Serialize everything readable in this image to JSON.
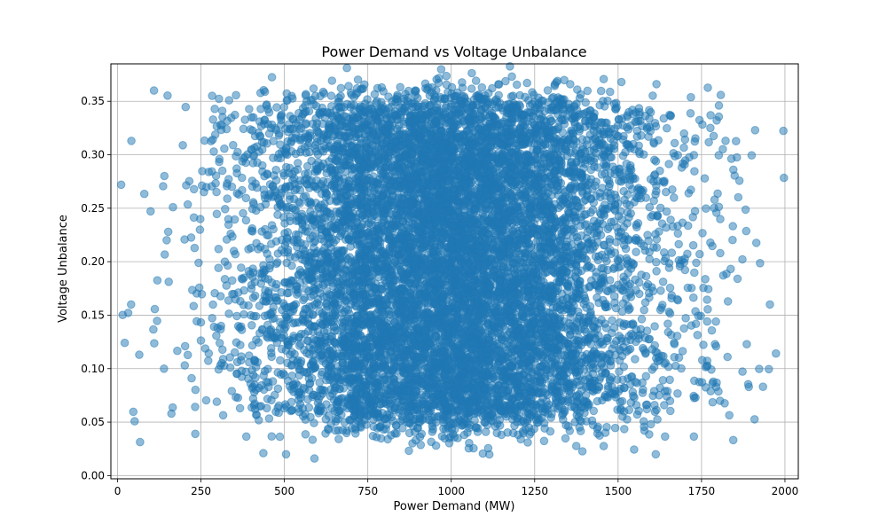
{
  "chart_data": {
    "type": "scatter",
    "title": "Power Demand vs Voltage Unbalance",
    "xlabel": "Power Demand (MW)",
    "ylabel": "Voltage Unbalance",
    "xlim": [
      -20,
      2040
    ],
    "ylim": [
      -0.003,
      0.385
    ],
    "xticks": [
      0,
      250,
      500,
      750,
      1000,
      1250,
      1500,
      1750,
      2000
    ],
    "xtick_labels": [
      "0",
      "250",
      "500",
      "750",
      "1000",
      "1250",
      "1500",
      "1750",
      "2000"
    ],
    "yticks": [
      0.0,
      0.05,
      0.1,
      0.15,
      0.2,
      0.25,
      0.3,
      0.35
    ],
    "ytick_labels": [
      "0.00",
      "0.05",
      "0.10",
      "0.15",
      "0.20",
      "0.25",
      "0.30",
      "0.35"
    ],
    "grid": true,
    "color": "#1f77b4",
    "marker_alpha": 0.5,
    "x_distribution": {
      "mean": 1000,
      "std": 300
    },
    "y_distribution": {
      "min": 0.05,
      "max": 0.35
    },
    "n_points": 10000,
    "outliers": [
      {
        "x": 65,
        "y": 0.113
      },
      {
        "x": 152,
        "y": 0.228
      },
      {
        "x": 222,
        "y": 0.091
      },
      {
        "x": 233,
        "y": 0.039
      },
      {
        "x": 243,
        "y": 0.199
      },
      {
        "x": 1955,
        "y": 0.16
      },
      {
        "x": 1858,
        "y": 0.184
      },
      {
        "x": 1828,
        "y": 0.111
      },
      {
        "x": 1822,
        "y": 0.313
      },
      {
        "x": 1777,
        "y": 0.337
      },
      {
        "x": 1793,
        "y": 0.144
      },
      {
        "x": 1806,
        "y": 0.208
      },
      {
        "x": 1615,
        "y": 0.366
      },
      {
        "x": 1510,
        "y": 0.368
      },
      {
        "x": 1648,
        "y": 0.079
      },
      {
        "x": 590,
        "y": 0.016
      },
      {
        "x": 437,
        "y": 0.021
      },
      {
        "x": 505,
        "y": 0.02
      },
      {
        "x": 305,
        "y": 0.296
      }
    ]
  }
}
